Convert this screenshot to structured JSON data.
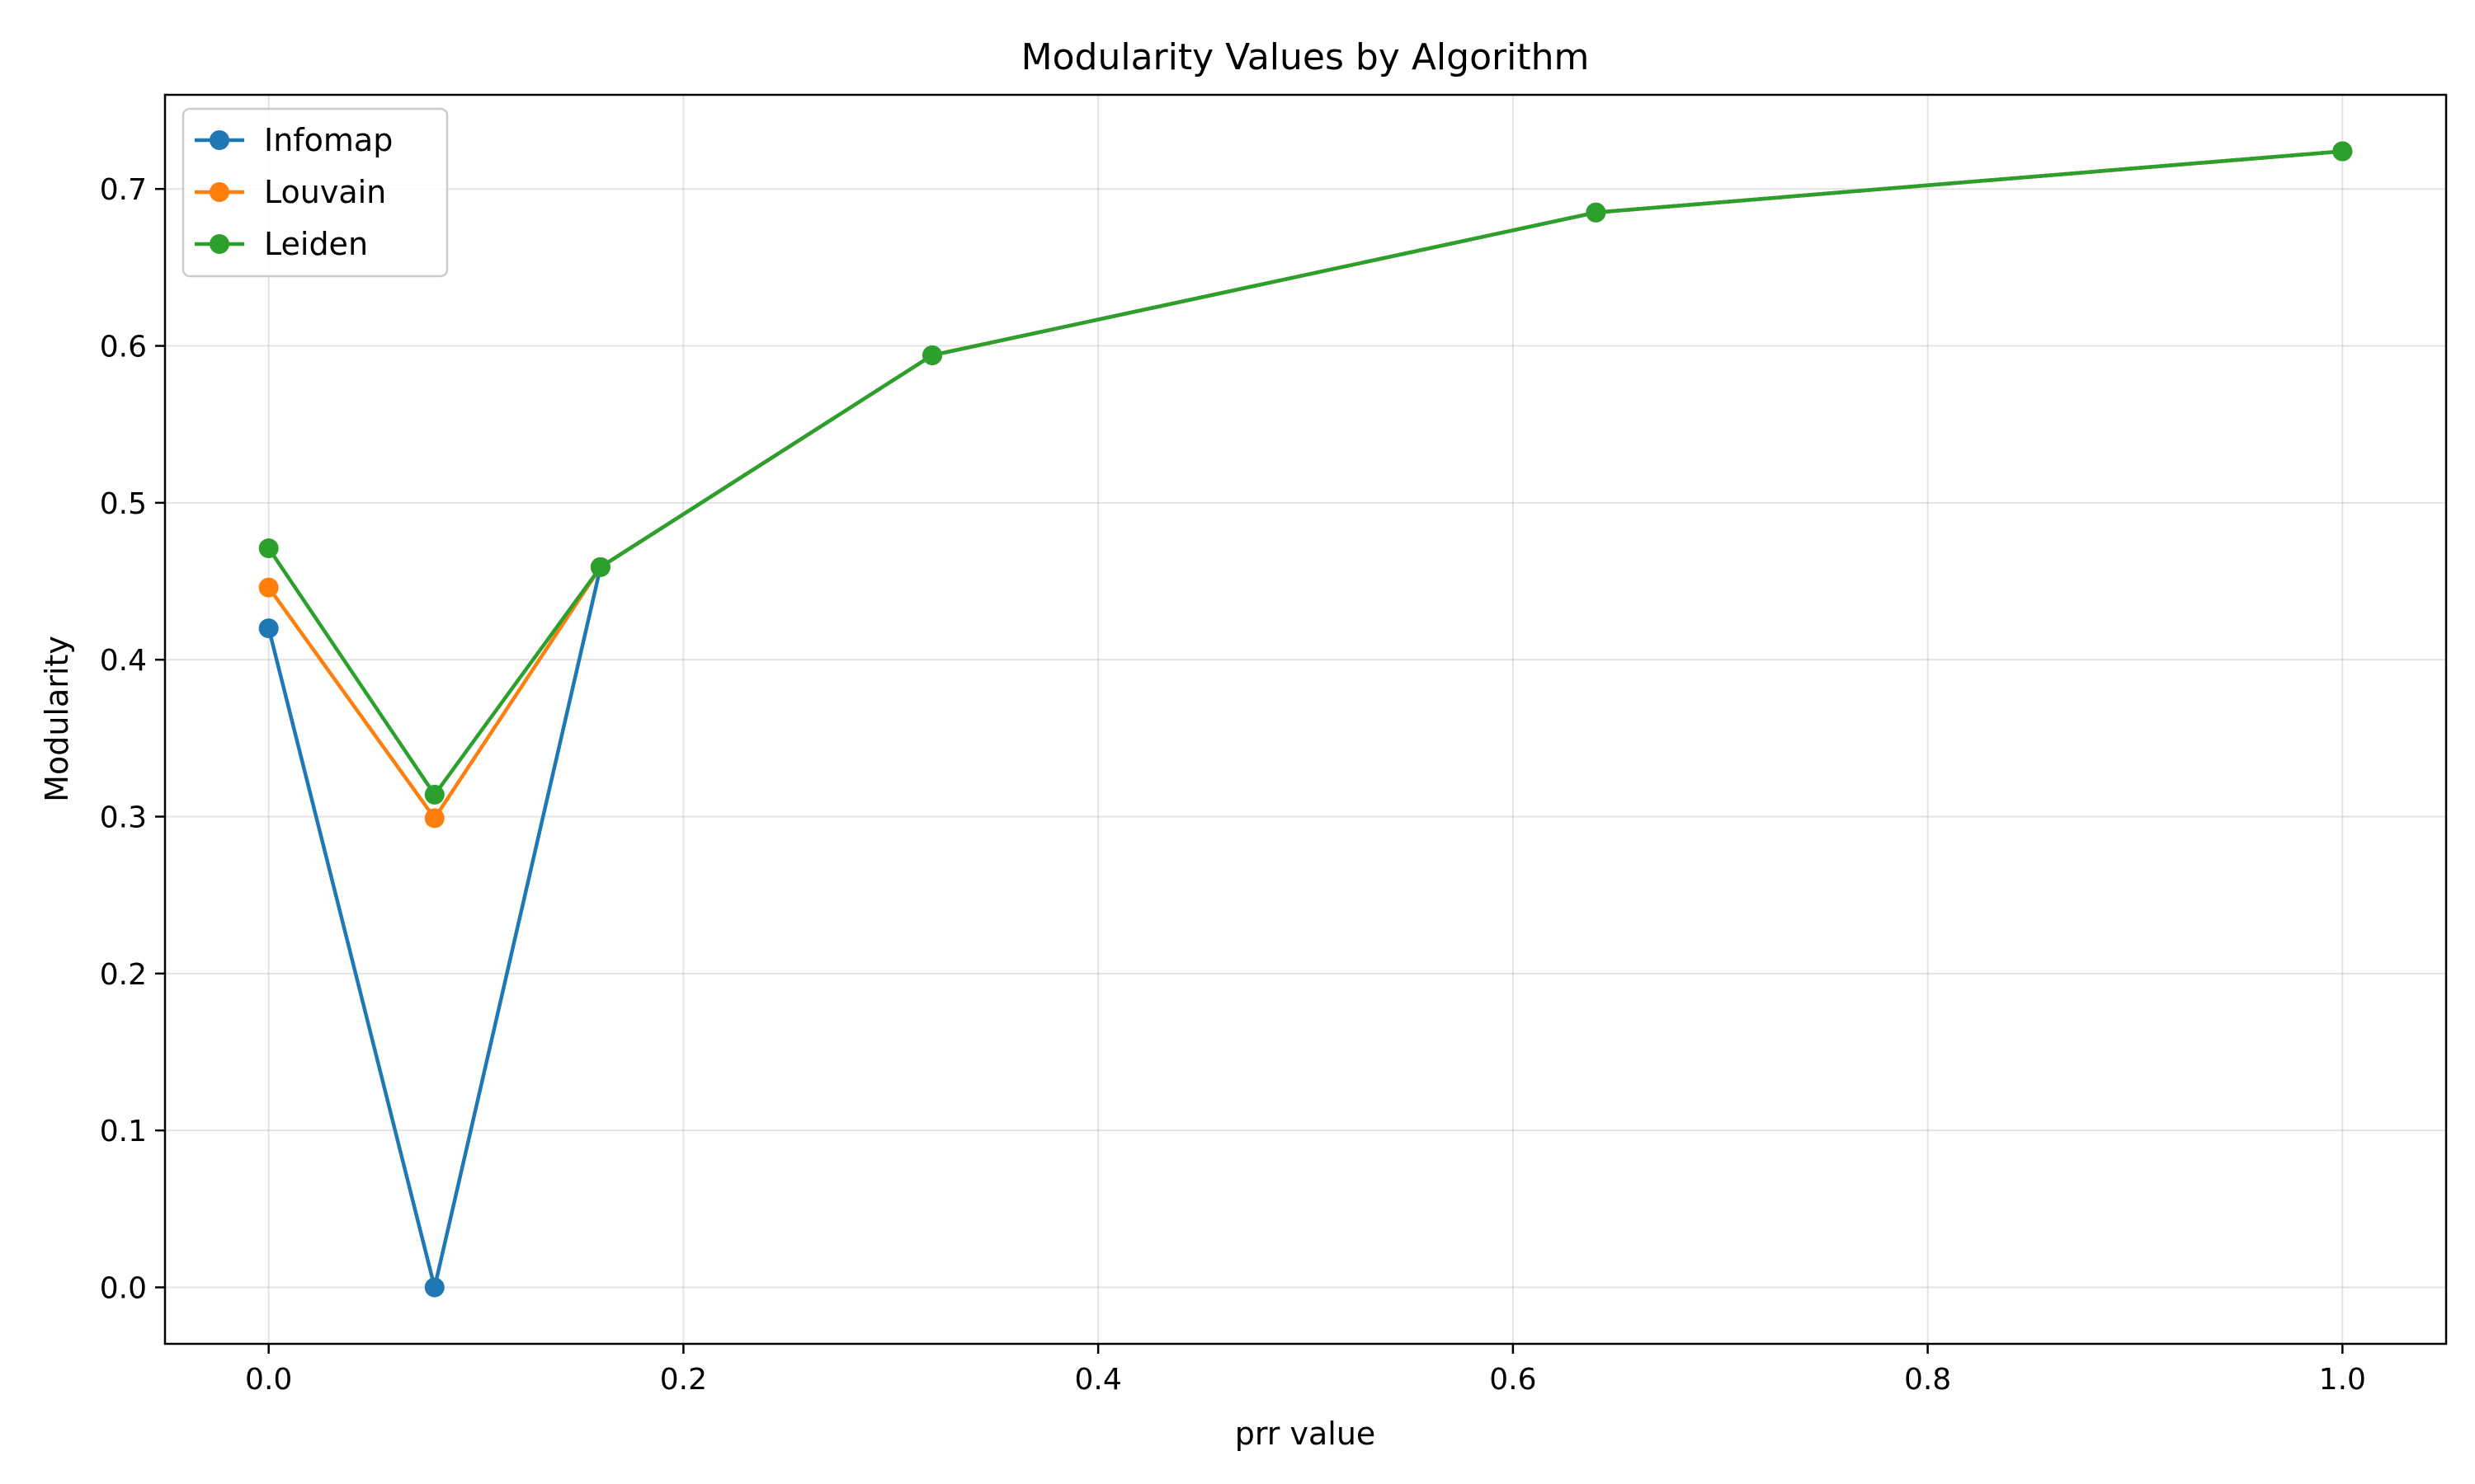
{
  "chart_data": {
    "type": "line",
    "title": "Modularity Values by Algorithm",
    "xlabel": "prr value",
    "ylabel": "Modularity",
    "xlim": [
      -0.05,
      1.05
    ],
    "ylim": [
      -0.036,
      0.76
    ],
    "xticks": [
      0.0,
      0.2,
      0.4,
      0.6,
      0.8,
      1.0
    ],
    "xtick_labels": [
      "0.0",
      "0.2",
      "0.4",
      "0.6",
      "0.8",
      "1.0"
    ],
    "yticks": [
      0.0,
      0.1,
      0.2,
      0.3,
      0.4,
      0.5,
      0.6,
      0.7
    ],
    "ytick_labels": [
      "0.0",
      "0.1",
      "0.2",
      "0.3",
      "0.4",
      "0.5",
      "0.6",
      "0.7"
    ],
    "grid": true,
    "legend_position": "upper-left",
    "x": [
      0.0,
      0.08,
      0.16,
      0.32,
      0.64,
      1.0
    ],
    "series": [
      {
        "name": "Infomap",
        "color": "#1f77b4",
        "values": [
          0.42,
          0.0,
          0.459,
          0.594,
          0.685,
          0.724
        ]
      },
      {
        "name": "Louvain",
        "color": "#ff7f0e",
        "values": [
          0.446,
          0.299,
          0.459,
          0.594,
          0.685,
          0.724
        ]
      },
      {
        "name": "Leiden",
        "color": "#2ca02c",
        "values": [
          0.471,
          0.314,
          0.459,
          0.594,
          0.685,
          0.724
        ]
      }
    ]
  }
}
